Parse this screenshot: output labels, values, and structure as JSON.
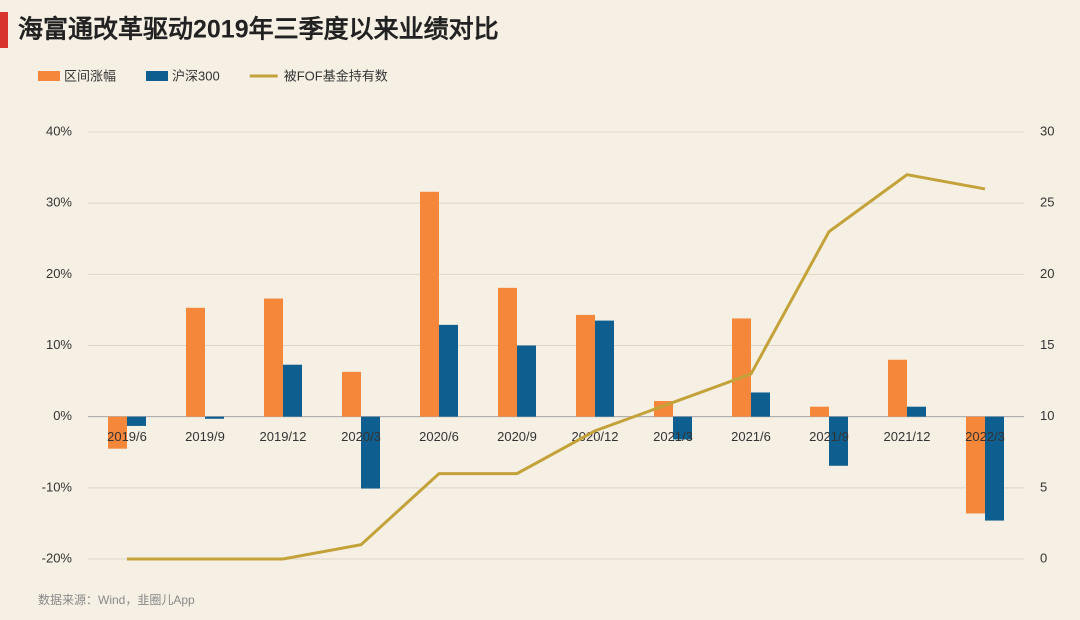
{
  "chart_data": {
    "type": "bar",
    "title": "海富通改革驱动2019年三季度以来业绩对比",
    "source": "数据来源：Wind，韭圈儿App",
    "categories": [
      "2019/6",
      "2019/9",
      "2019/12",
      "2020/3",
      "2020/6",
      "2020/9",
      "2020/12",
      "2021/3",
      "2021/6",
      "2021/9",
      "2021/12",
      "2022/3"
    ],
    "series": [
      {
        "name": "区间涨幅",
        "type": "bar",
        "color": "#f5873a",
        "values": [
          -4.5,
          15.3,
          16.6,
          6.3,
          31.6,
          18.1,
          14.3,
          2.2,
          13.8,
          1.4,
          8.0,
          -13.6
        ]
      },
      {
        "name": "沪深300",
        "type": "bar",
        "color": "#0e5f8f",
        "values": [
          -1.3,
          -0.3,
          7.3,
          -10.1,
          12.9,
          10.0,
          13.5,
          -3.2,
          3.4,
          -6.9,
          1.4,
          -14.6
        ]
      },
      {
        "name": "被FOF基金持有数",
        "type": "line",
        "axis": "y2",
        "color": "#c4a23a",
        "values": [
          0,
          0,
          0,
          1,
          6,
          6,
          9,
          11,
          13,
          23,
          27,
          26
        ]
      }
    ],
    "ylim": [
      -20,
      40
    ],
    "yticks": [
      {
        "value": -20,
        "label": "-20%"
      },
      {
        "value": -10,
        "label": "-10%"
      },
      {
        "value": 0,
        "label": "0%"
      },
      {
        "value": 10,
        "label": "10%"
      },
      {
        "value": 20,
        "label": "20%"
      },
      {
        "value": 30,
        "label": "30%"
      },
      {
        "value": 40,
        "label": "40%"
      }
    ],
    "y2lim": [
      0,
      30
    ],
    "y2ticks": [
      0,
      5,
      10,
      15,
      20,
      25,
      30
    ],
    "grid": true
  }
}
